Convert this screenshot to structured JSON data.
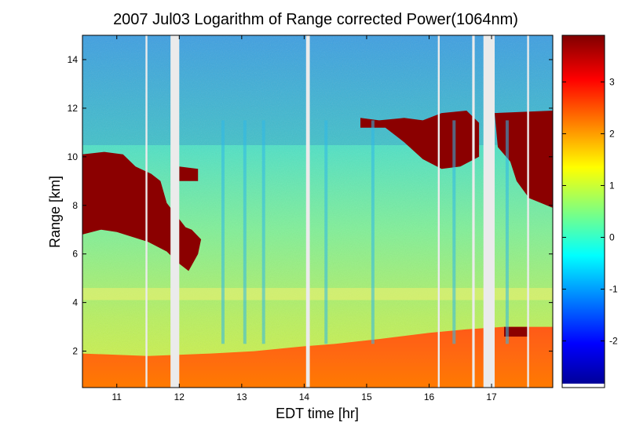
{
  "figure": {
    "title": "2007 Jul03  Logarithm of Range corrected Power(1064nm)"
  },
  "chart_data": {
    "type": "heatmap",
    "title": "2007 Jul03  Logarithm of Range corrected Power(1064nm)",
    "xlabel": "EDT time [hr]",
    "ylabel": "Range [km]",
    "xlim": [
      10.45,
      17.98
    ],
    "ylim": [
      0.5,
      15.0
    ],
    "x_ticks": [
      11,
      12,
      13,
      14,
      15,
      16,
      17
    ],
    "y_ticks": [
      2,
      4,
      6,
      8,
      10,
      12,
      14
    ],
    "colorbar": {
      "colormap": "jet",
      "clim": [
        -2.9,
        3.9
      ],
      "ticks": [
        -2,
        -1,
        0,
        1,
        2,
        3
      ]
    },
    "regions": [
      {
        "name": "background",
        "value": -0.6
      },
      {
        "name": "boundary_layer",
        "value": 2.2
      },
      {
        "name": "cloud",
        "value": 3.9
      }
    ],
    "data_gaps_hr": [
      [
        11.46,
        11.49
      ],
      [
        11.86,
        12.0
      ],
      [
        14.03,
        14.09
      ],
      [
        16.14,
        16.17
      ],
      [
        16.69,
        16.73
      ],
      [
        16.87,
        17.05
      ],
      [
        17.57,
        17.6
      ]
    ]
  }
}
